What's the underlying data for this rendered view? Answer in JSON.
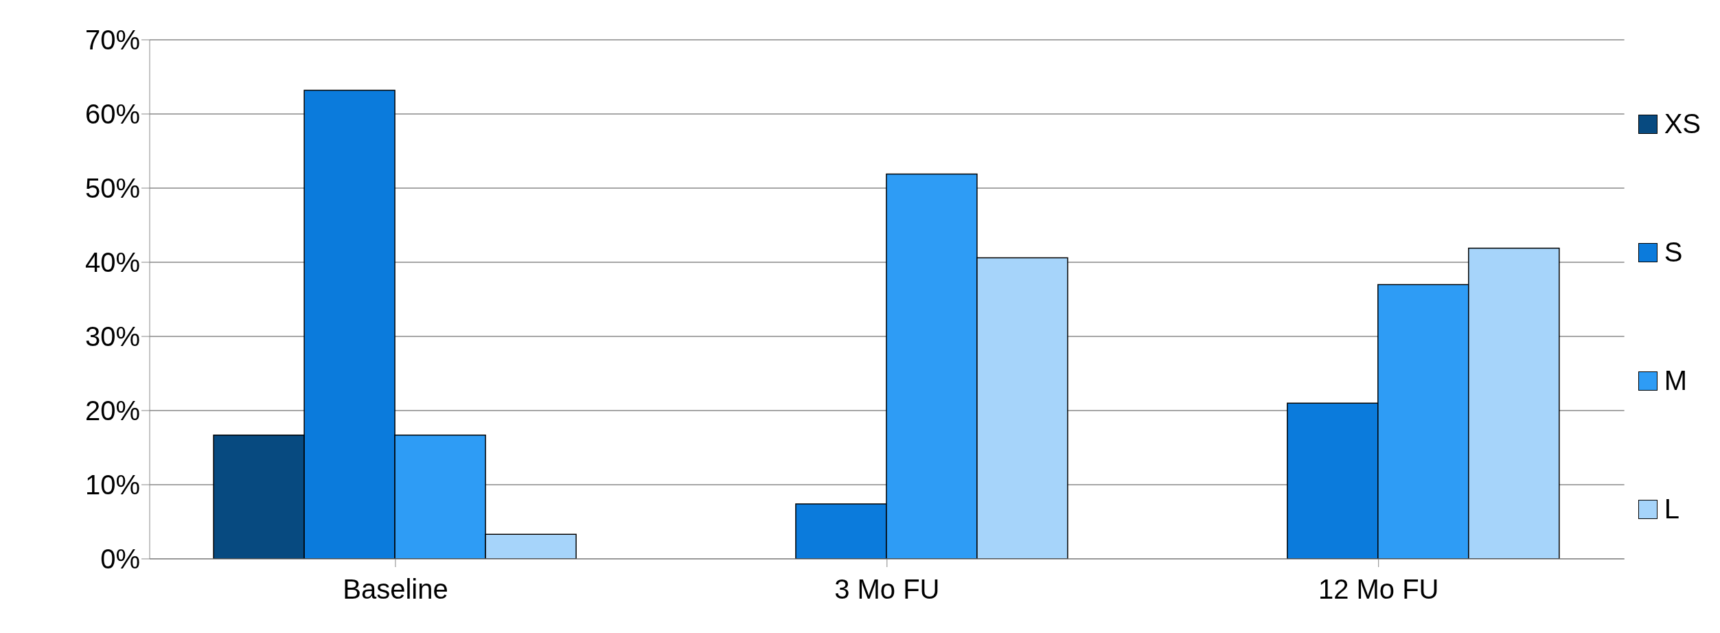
{
  "chart_data": {
    "type": "bar",
    "categories": [
      "Baseline",
      "3 Mo FU",
      "12 Mo FU"
    ],
    "series": [
      {
        "name": "XS",
        "color": "#074a80",
        "values": [
          16.7,
          0,
          0
        ]
      },
      {
        "name": "S",
        "color": "#0b7bdc",
        "values": [
          63.2,
          7.4,
          21.0
        ]
      },
      {
        "name": "M",
        "color": "#2e9cf5",
        "values": [
          16.7,
          51.9,
          37.0
        ]
      },
      {
        "name": "L",
        "color": "#a6d4fa",
        "values": [
          3.3,
          40.6,
          41.9
        ]
      }
    ],
    "ylim": [
      0,
      70
    ],
    "yticks": [
      {
        "value": 0,
        "label": "0%"
      },
      {
        "value": 10,
        "label": "10%"
      },
      {
        "value": 20,
        "label": "20%"
      },
      {
        "value": 30,
        "label": "30%"
      },
      {
        "value": 40,
        "label": "40%"
      },
      {
        "value": 50,
        "label": "50%"
      },
      {
        "value": 60,
        "label": "60%"
      },
      {
        "value": 70,
        "label": "70%"
      }
    ],
    "grid": "y",
    "legend": "right"
  }
}
